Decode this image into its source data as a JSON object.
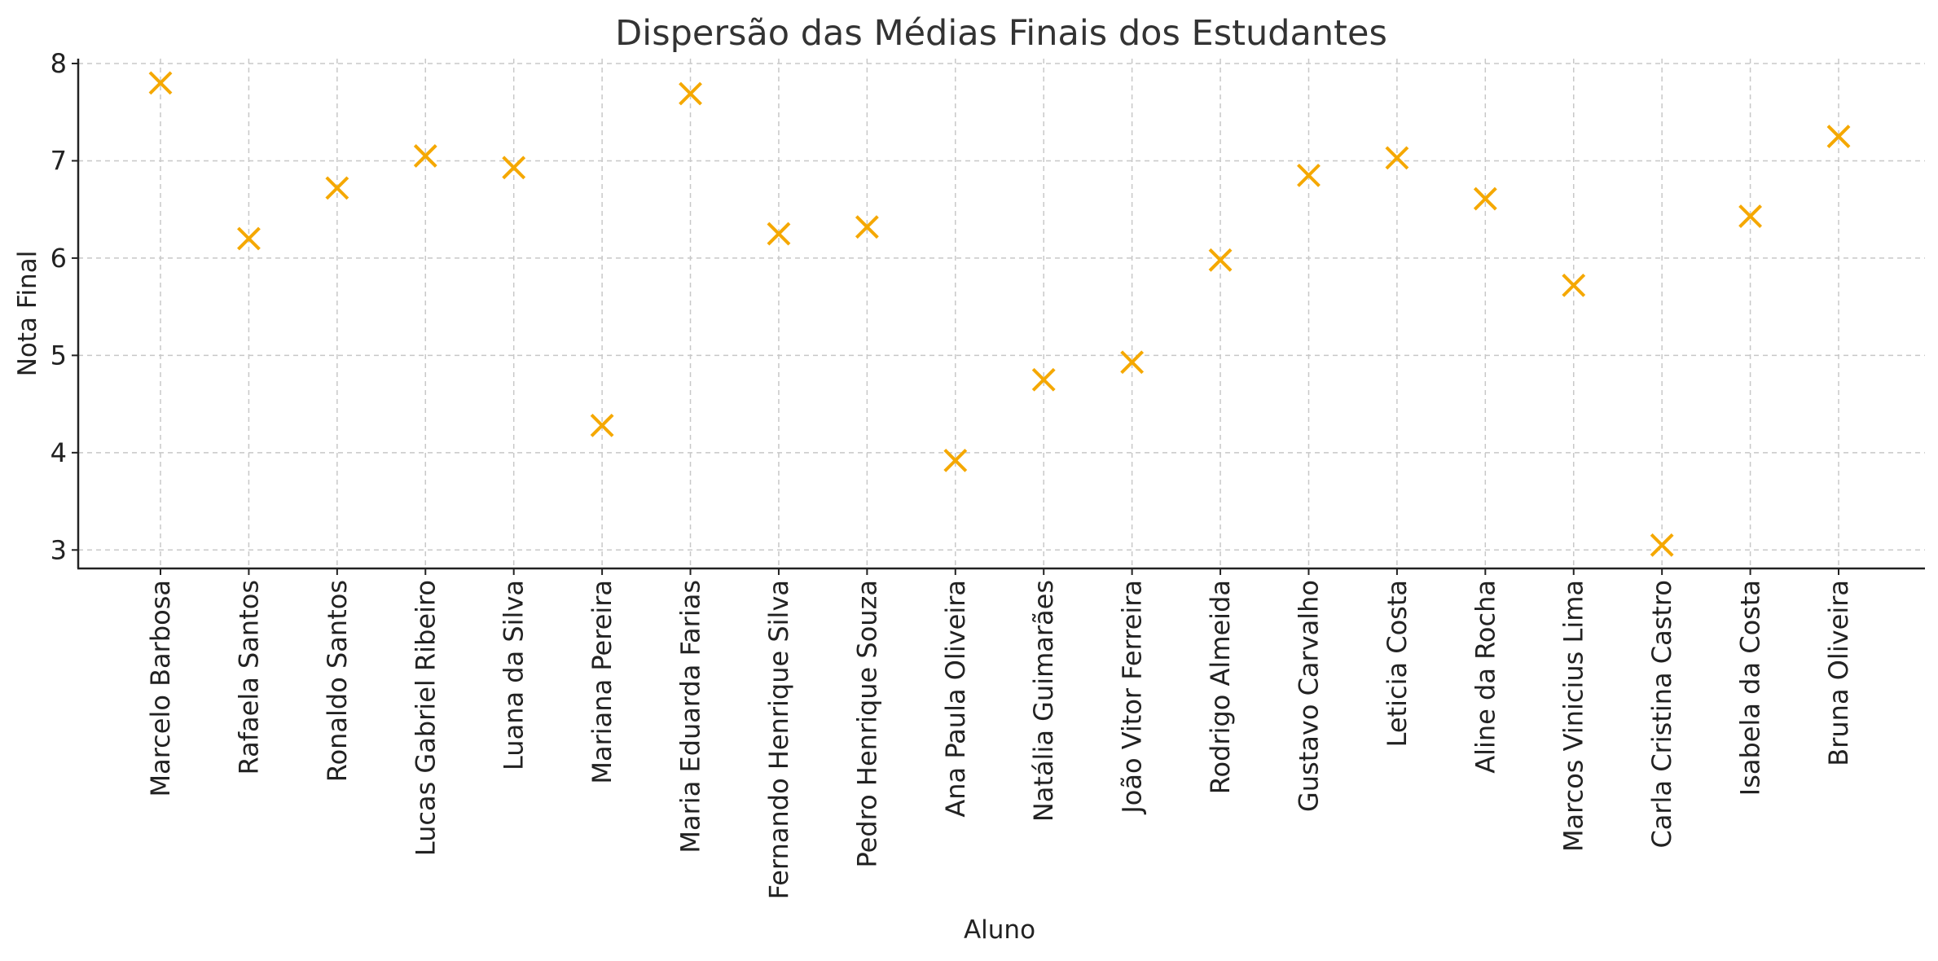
{
  "chart_data": {
    "type": "scatter",
    "title": "Dispersão das Médias Finais dos Estudantes",
    "xlabel": "Aluno",
    "ylabel": "Nota Final",
    "categories": [
      "Marcelo Barbosa",
      "Rafaela Santos",
      "Ronaldo Santos",
      "Lucas Gabriel Ribeiro",
      "Luana da Silva",
      "Mariana Pereira",
      "Maria Eduarda Farias",
      "Fernando Henrique Silva",
      "Pedro Henrique Souza",
      "Ana Paula Oliveira",
      "Natália Guimarães",
      "João Vitor Ferreira",
      "Rodrigo Almeida",
      "Gustavo Carvalho",
      "Leticia Costa",
      "Aline da Rocha",
      "Marcos Vinicius Lima",
      "Carla Cristina Castro",
      "Isabela da Costa",
      "Bruna Oliveira"
    ],
    "values": [
      7.8,
      6.2,
      6.72,
      7.05,
      6.93,
      4.28,
      7.69,
      6.25,
      6.32,
      3.92,
      4.75,
      4.93,
      5.98,
      6.85,
      7.03,
      6.61,
      5.72,
      3.05,
      6.43,
      7.25
    ],
    "yticks": [
      3,
      4,
      5,
      6,
      7,
      8
    ],
    "ylim": [
      2.81,
      8.05
    ],
    "marker": "x",
    "marker_color": "#f5a800",
    "grid": true
  }
}
